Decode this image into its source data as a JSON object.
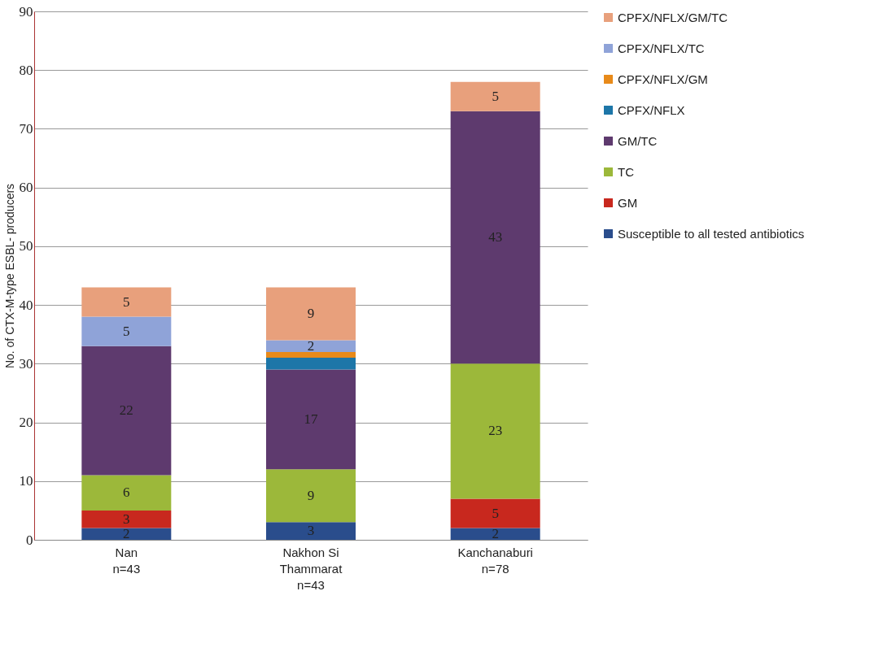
{
  "chart_data": {
    "type": "bar",
    "stacked": true,
    "ylabel": "No. of CTX-M-type ESBL- producers",
    "categories": [
      "Nan\nn=43",
      "Nakhon Si\nThammarat\nn=43",
      "Kanchanaburi\nn=78"
    ],
    "series": [
      {
        "name": "Susceptible to all tested antibiotics",
        "color": "#2a4d8c",
        "values": [
          2,
          3,
          2
        ],
        "value_labels": [
          "2",
          "3",
          "2"
        ]
      },
      {
        "name": "GM",
        "color": "#c8281e",
        "values": [
          3,
          null,
          5
        ],
        "value_labels": [
          "3",
          null,
          "5"
        ]
      },
      {
        "name": "TC",
        "color": "#9cb83a",
        "values": [
          6,
          9,
          23
        ],
        "value_labels": [
          "6",
          "9",
          "23"
        ]
      },
      {
        "name": "GM/TC",
        "color": "#5e3a6e",
        "values": [
          22,
          17,
          43
        ],
        "value_labels": [
          "22",
          "17",
          "43"
        ]
      },
      {
        "name": "CPFX/NFLX",
        "color": "#1d76a8",
        "values": [
          null,
          2,
          null
        ],
        "value_labels": [
          null,
          null,
          null
        ]
      },
      {
        "name": "CPFX/NFLX/GM",
        "color": "#e88a1a",
        "values": [
          null,
          1,
          null
        ],
        "value_labels": [
          null,
          null,
          null
        ]
      },
      {
        "name": "CPFX/NFLX/TC",
        "color": "#8fa3d8",
        "values": [
          5,
          2,
          null
        ],
        "value_labels": [
          "5",
          "2",
          null
        ]
      },
      {
        "name": "CPFX/NFLX/GM/TC",
        "color": "#e8a07c",
        "values": [
          5,
          9,
          5
        ],
        "value_labels": [
          "5",
          "9",
          "5"
        ]
      }
    ],
    "ylim": [
      0,
      90
    ],
    "yticks": [
      0,
      10,
      20,
      30,
      40,
      50,
      60,
      70,
      80,
      90
    ],
    "grid": "y",
    "legend": "right"
  }
}
